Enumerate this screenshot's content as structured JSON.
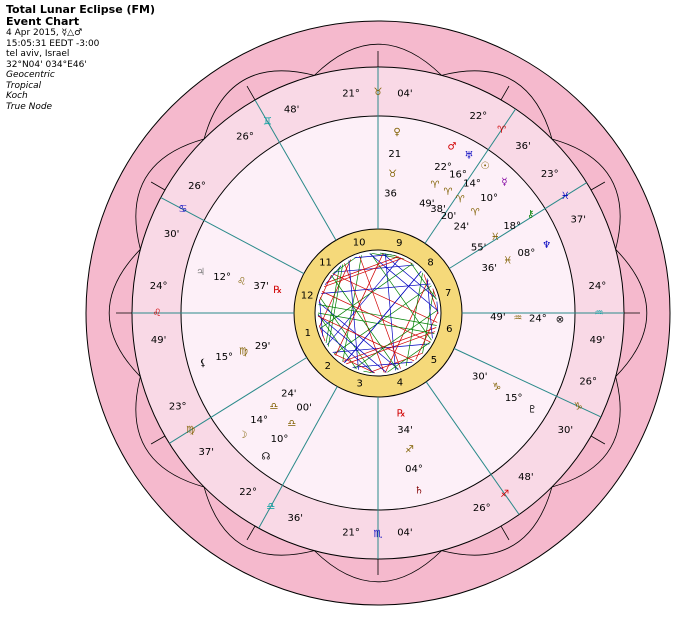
{
  "header": {
    "title": "Total Lunar Eclipse (FM)",
    "subtitle": "Event Chart",
    "lines": [
      "4 Apr 2015, ☿△♂",
      "15:05:31  EEDT  -3:00",
      "tel aviv, Israel",
      "32°N04' 034°E46'",
      "Geocentric",
      "Tropical",
      "Koch",
      "True Node"
    ]
  },
  "cusps": [
    {
      "degree": "24°",
      "sign": "♌",
      "minute": "49'"
    },
    {
      "degree": "23°",
      "sign": "♍",
      "minute": "37'"
    },
    {
      "degree": "22°",
      "sign": "♎",
      "minute": "36'"
    },
    {
      "degree": "21°",
      "sign": "♏",
      "minute": "04'"
    },
    {
      "degree": "26°",
      "sign": "♐",
      "minute": "48'"
    },
    {
      "degree": "26°",
      "sign": "♑",
      "minute": "30'"
    },
    {
      "degree": "24°",
      "sign": "♒",
      "minute": "49'"
    },
    {
      "degree": "23°",
      "sign": "♓",
      "minute": "37'"
    },
    {
      "degree": "22°",
      "sign": "♈",
      "minute": "36'"
    },
    {
      "degree": "21°",
      "sign": "♉",
      "minute": "04'"
    },
    {
      "degree": "26°",
      "sign": "♊",
      "minute": "48'"
    },
    {
      "degree": "26°",
      "sign": "♋",
      "minute": "30'"
    }
  ],
  "houses": [
    "1",
    "2",
    "3",
    "4",
    "5",
    "6",
    "7",
    "8",
    "9",
    "10",
    "11",
    "12"
  ],
  "planets": [
    {
      "glyph": "♀",
      "degree": "21",
      "sign": "♉",
      "minute": "36",
      "color": "#806000"
    },
    {
      "glyph": "♂",
      "degree": "22°",
      "sign": "♈",
      "minute": "49'",
      "color": "#d00000"
    },
    {
      "glyph": "♅",
      "degree": "16°",
      "sign": "♈",
      "minute": "38'",
      "color": "#0000c0"
    },
    {
      "glyph": "☉",
      "degree": "14°",
      "sign": "♈",
      "minute": "20'",
      "color": "#806000"
    },
    {
      "glyph": "☿",
      "degree": "10°",
      "sign": "♈",
      "minute": "24'",
      "color": "#8000a0"
    },
    {
      "glyph": "⚷",
      "degree": "18°",
      "sign": "♓",
      "minute": "55'",
      "color": "#008000"
    },
    {
      "glyph": "♆",
      "degree": "08°",
      "sign": "♓",
      "minute": "36'",
      "color": "#0000c0"
    },
    {
      "glyph": "⊗",
      "degree": "24°",
      "sign": "♒",
      "minute": "49'",
      "color": "#000000"
    },
    {
      "glyph": "♇",
      "degree": "15°",
      "sign": "♑",
      "minute": "30'",
      "color": "#000000"
    },
    {
      "glyph": "♄",
      "degree": "04°",
      "sign": "♐",
      "minute": "34'",
      "retro": "℞",
      "color": "#800000"
    },
    {
      "glyph": "☽",
      "degree": "14°",
      "sign": "♎",
      "minute": "24'",
      "color": "#806000"
    },
    {
      "glyph": "☊",
      "degree": "10°",
      "sign": "♎",
      "minute": "00'",
      "color": "#000000"
    },
    {
      "glyph": "⚸",
      "degree": "15°",
      "sign": "♍",
      "minute": "29'",
      "color": "#000000"
    },
    {
      "glyph": "♃",
      "degree": "12°",
      "sign": "♌",
      "minute": "37'",
      "retro": "℞",
      "color": "#808080"
    }
  ]
}
